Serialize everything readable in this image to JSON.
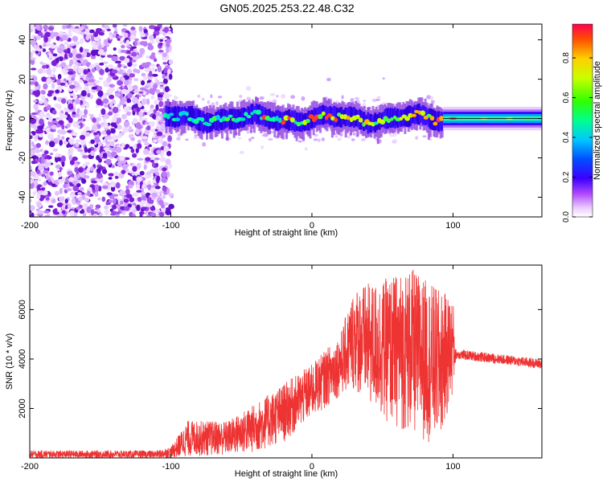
{
  "title": "GN05.2025.253.22.48.C32",
  "chart_data": [
    {
      "type": "heatmap",
      "title": "GN05.2025.253.22.48.C32",
      "xlabel": "Height of straight line (km)",
      "ylabel": "Frequency (Hz)",
      "xlim": [
        -200,
        163
      ],
      "ylim": [
        -50,
        48
      ],
      "x_ticks": [
        -200,
        -100,
        0,
        100
      ],
      "y_ticks": [
        -40,
        -20,
        0,
        20,
        40
      ],
      "colorbar": {
        "label": "Normalized spectral amplitude",
        "range": [
          0,
          0.97
        ],
        "ticks": [
          0.0,
          0.2,
          0.4,
          0.6,
          0.8
        ]
      },
      "noise_region_x": [
        -200,
        -100
      ],
      "signal_center_freq_hz": 0,
      "signal_band_hz": [
        -5,
        5
      ]
    },
    {
      "type": "line",
      "xlabel": "Height of straight line (km)",
      "ylabel": "SNR (10 * v/v)",
      "xlim": [
        -200,
        163
      ],
      "ylim": [
        0,
        7800
      ],
      "x_ticks": [
        -200,
        -100,
        0,
        100
      ],
      "y_ticks": [
        2000,
        4000,
        6000
      ],
      "series": [
        {
          "name": "SNR",
          "color": "#ee3333",
          "envelope": [
            {
              "x": -200,
              "low": 0,
              "high": 300
            },
            {
              "x": -110,
              "low": 0,
              "high": 300
            },
            {
              "x": -100,
              "low": 0,
              "high": 450
            },
            {
              "x": -88,
              "low": 50,
              "high": 1500
            },
            {
              "x": -60,
              "low": 100,
              "high": 1500
            },
            {
              "x": -40,
              "low": 200,
              "high": 2200
            },
            {
              "x": -20,
              "low": 600,
              "high": 3000
            },
            {
              "x": 0,
              "low": 1600,
              "high": 3800
            },
            {
              "x": 20,
              "low": 2500,
              "high": 5000
            },
            {
              "x": 30,
              "low": 2700,
              "high": 6900
            },
            {
              "x": 50,
              "low": 1500,
              "high": 7200
            },
            {
              "x": 70,
              "low": 900,
              "high": 7700
            },
            {
              "x": 90,
              "low": 500,
              "high": 6800
            },
            {
              "x": 100,
              "low": 2500,
              "high": 6500
            },
            {
              "x": 102,
              "low": 4000,
              "high": 4400
            },
            {
              "x": 163,
              "low": 3600,
              "high": 4000
            }
          ]
        }
      ]
    }
  ]
}
